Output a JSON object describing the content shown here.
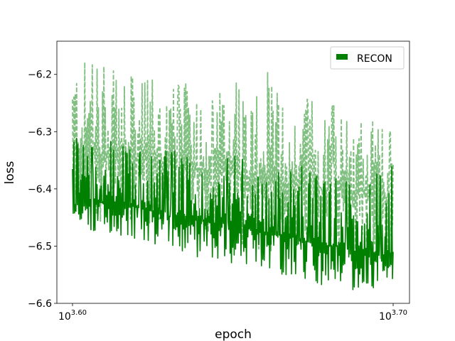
{
  "chart_data": {
    "type": "line",
    "title": "",
    "xlabel": "epoch",
    "ylabel": "loss",
    "x_scale": "log",
    "xlim": [
      3981,
      5012
    ],
    "ylim": [
      -6.6,
      -6.142
    ],
    "grid": false,
    "legend": {
      "position": "top-right",
      "entries": [
        "RECON"
      ]
    },
    "x_ticks": [
      {
        "value": 3981,
        "base": "10",
        "exponent": "3.60"
      },
      {
        "value": 5012,
        "base": "10",
        "exponent": "3.70"
      }
    ],
    "y_ticks": [
      {
        "value": -6.6,
        "label": "−6.6"
      },
      {
        "value": -6.5,
        "label": "−6.5"
      },
      {
        "value": -6.4,
        "label": "−6.4"
      },
      {
        "value": -6.3,
        "label": "−6.3"
      },
      {
        "value": -6.2,
        "label": "−6.2"
      }
    ],
    "series": [
      {
        "name": "RECON",
        "style": "solid",
        "color": "#008000",
        "x": [
          3981,
          4040,
          4100,
          4160,
          4220,
          4280,
          4340,
          4400,
          4460,
          4520,
          4580,
          4640,
          4700,
          4760,
          4820,
          4880,
          4940,
          5012
        ],
        "y": [
          -6.43,
          -6.42,
          -6.43,
          -6.43,
          -6.44,
          -6.45,
          -6.45,
          -6.46,
          -6.46,
          -6.47,
          -6.48,
          -6.48,
          -6.49,
          -6.5,
          -6.5,
          -6.51,
          -6.51,
          -6.53
        ],
        "y_min": [
          -6.47,
          -6.48,
          -6.48,
          -6.49,
          -6.5,
          -6.51,
          -6.52,
          -6.53,
          -6.53,
          -6.54,
          -6.55,
          -6.55,
          -6.56,
          -6.57,
          -6.57,
          -6.58,
          -6.58,
          -6.58
        ],
        "y_max": [
          -6.3,
          -6.32,
          -6.31,
          -6.33,
          -6.34,
          -6.33,
          -6.35,
          -6.36,
          -6.34,
          -6.35,
          -6.36,
          -6.37,
          -6.35,
          -6.38,
          -6.38,
          -6.38,
          -6.37,
          -6.36
        ]
      },
      {
        "name": "",
        "style": "dashed",
        "color": "#7fbf7f",
        "x": [
          3981,
          4040,
          4100,
          4160,
          4220,
          4280,
          4340,
          4400,
          4460,
          4520,
          4580,
          4640,
          4700,
          4760,
          4820,
          4880,
          4940,
          5012
        ],
        "y": [
          -6.33,
          -6.34,
          -6.34,
          -6.35,
          -6.35,
          -6.36,
          -6.36,
          -6.37,
          -6.37,
          -6.38,
          -6.38,
          -6.39,
          -6.39,
          -6.4,
          -6.4,
          -6.41,
          -6.41,
          -6.42
        ],
        "y_min": [
          -6.45,
          -6.47,
          -6.48,
          -6.47,
          -6.48,
          -6.49,
          -6.48,
          -6.49,
          -6.5,
          -6.5,
          -6.51,
          -6.51,
          -6.52,
          -6.52,
          -6.53,
          -6.53,
          -6.54,
          -6.54
        ],
        "y_max": [
          -6.16,
          -6.18,
          -6.19,
          -6.2,
          -6.2,
          -6.22,
          -6.21,
          -6.24,
          -6.2,
          -6.23,
          -6.19,
          -6.25,
          -6.23,
          -6.26,
          -6.25,
          -6.27,
          -6.28,
          -6.3
        ]
      }
    ]
  }
}
